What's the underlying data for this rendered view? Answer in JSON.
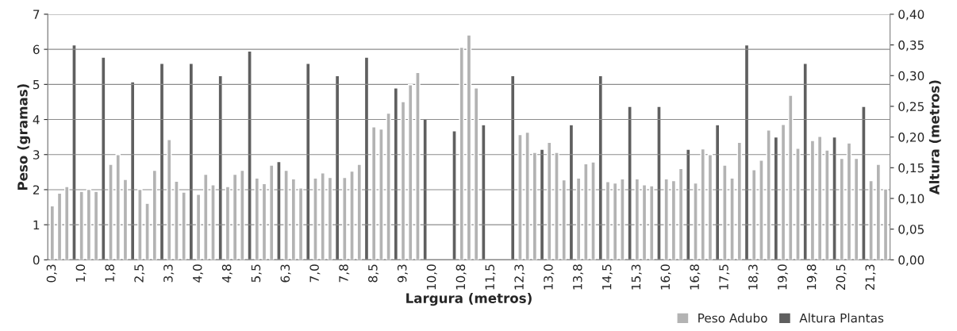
{
  "chart_data": {
    "type": "bar",
    "xlabel": "Largura (metros)",
    "ylabel": "Peso (gramas)",
    "y2label": "Altura (metros)",
    "categories": [
      "0,3",
      null,
      null,
      null,
      "1,0",
      null,
      null,
      null,
      "1,8",
      null,
      null,
      null,
      "2,5",
      null,
      null,
      null,
      "3,3",
      null,
      null,
      null,
      "4,0",
      null,
      null,
      null,
      "4,8",
      null,
      null,
      null,
      "5,5",
      null,
      null,
      null,
      "6,3",
      null,
      null,
      null,
      "7,0",
      null,
      null,
      null,
      "7,8",
      null,
      null,
      null,
      "8,5",
      null,
      null,
      null,
      "9,3",
      null,
      null,
      null,
      "10,0",
      null,
      null,
      null,
      "10,8",
      null,
      null,
      null,
      "11,5",
      null,
      null,
      null,
      "12,3",
      null,
      null,
      null,
      "13,0",
      null,
      null,
      null,
      "13,8",
      null,
      null,
      null,
      "14,5",
      null,
      null,
      null,
      "15,3",
      null,
      null,
      null,
      "16,0",
      null,
      null,
      null,
      "16,8",
      null,
      null,
      null,
      "17,5",
      null,
      null,
      null,
      "18,3",
      null,
      null,
      null,
      "19,0",
      null,
      null,
      null,
      "19,8",
      null,
      null,
      null,
      "20,5",
      null,
      null,
      null,
      "21,3",
      null,
      null
    ],
    "series": [
      {
        "name": "Peso Adubo",
        "color": "#b3b3b3",
        "values": [
          1.54,
          1.9,
          2.09,
          null,
          1.95,
          2.01,
          1.95,
          null,
          2.72,
          3.0,
          2.29,
          null,
          2.01,
          1.61,
          2.55,
          null,
          3.43,
          2.24,
          1.93,
          null,
          1.87,
          2.44,
          2.14,
          null,
          2.09,
          2.44,
          2.55,
          null,
          2.33,
          2.17,
          2.7,
          null,
          2.55,
          2.31,
          2.05,
          null,
          2.33,
          2.48,
          2.35,
          null,
          2.35,
          2.53,
          2.72,
          null,
          3.79,
          3.73,
          4.18,
          null,
          4.51,
          4.99,
          5.34,
          null,
          null,
          null,
          null,
          null,
          6.06,
          6.41,
          4.9,
          null,
          null,
          null,
          null,
          null,
          3.57,
          3.64,
          3.06,
          null,
          3.35,
          3.06,
          2.28,
          null,
          2.33,
          2.74,
          2.79,
          null,
          2.23,
          2.19,
          2.31,
          null,
          2.31,
          2.14,
          2.11,
          null,
          2.31,
          2.26,
          2.6,
          null,
          2.19,
          3.16,
          3.0,
          null,
          2.7,
          2.33,
          3.35,
          null,
          2.57,
          2.84,
          3.7,
          null,
          3.86,
          4.69,
          3.18,
          null,
          3.4,
          3.52,
          3.13,
          null,
          2.89,
          3.33,
          2.89,
          null,
          2.26,
          2.72,
          2.02
        ]
      },
      {
        "name": "Altura Plantas",
        "color": "#5f5f5f",
        "axis": "y2",
        "values": [
          null,
          null,
          null,
          0.35,
          null,
          null,
          null,
          0.33,
          null,
          null,
          null,
          0.29,
          null,
          null,
          null,
          0.32,
          null,
          null,
          null,
          0.32,
          null,
          null,
          null,
          0.3,
          null,
          null,
          null,
          0.34,
          null,
          null,
          null,
          0.16,
          null,
          null,
          null,
          0.32,
          null,
          null,
          null,
          0.3,
          null,
          null,
          null,
          0.33,
          null,
          null,
          null,
          0.28,
          null,
          null,
          null,
          0.23,
          null,
          null,
          null,
          0.21,
          null,
          null,
          null,
          0.22,
          null,
          null,
          null,
          0.3,
          null,
          null,
          null,
          0.18,
          null,
          null,
          null,
          0.22,
          null,
          null,
          null,
          0.3,
          null,
          null,
          null,
          0.25,
          null,
          null,
          null,
          0.25,
          null,
          null,
          null,
          0.18,
          null,
          null,
          null,
          0.22,
          null,
          null,
          null,
          0.35,
          null,
          null,
          null,
          0.2,
          null,
          null,
          null,
          0.32,
          null,
          null,
          null,
          0.2,
          null,
          null,
          null,
          0.25,
          null,
          null,
          null
        ]
      }
    ],
    "ylim": [
      0,
      7
    ],
    "yticks": [
      0,
      1,
      2,
      3,
      4,
      5,
      6,
      7
    ],
    "y2lim": [
      0,
      0.4
    ],
    "y2ticks": [
      {
        "value": 0,
        "label": "0,00"
      },
      {
        "value": 0.05,
        "label": "0,05"
      },
      {
        "value": 0.1,
        "label": "0,10"
      },
      {
        "value": 0.15,
        "label": "0,15"
      },
      {
        "value": 0.2,
        "label": "0,20"
      },
      {
        "value": 0.25,
        "label": "0,25"
      },
      {
        "value": 0.3,
        "label": "0,30"
      },
      {
        "value": 0.35,
        "label": "0,35"
      },
      {
        "value": 0.4,
        "label": "0,40"
      }
    ],
    "grid": "y",
    "legend": "bottom"
  }
}
